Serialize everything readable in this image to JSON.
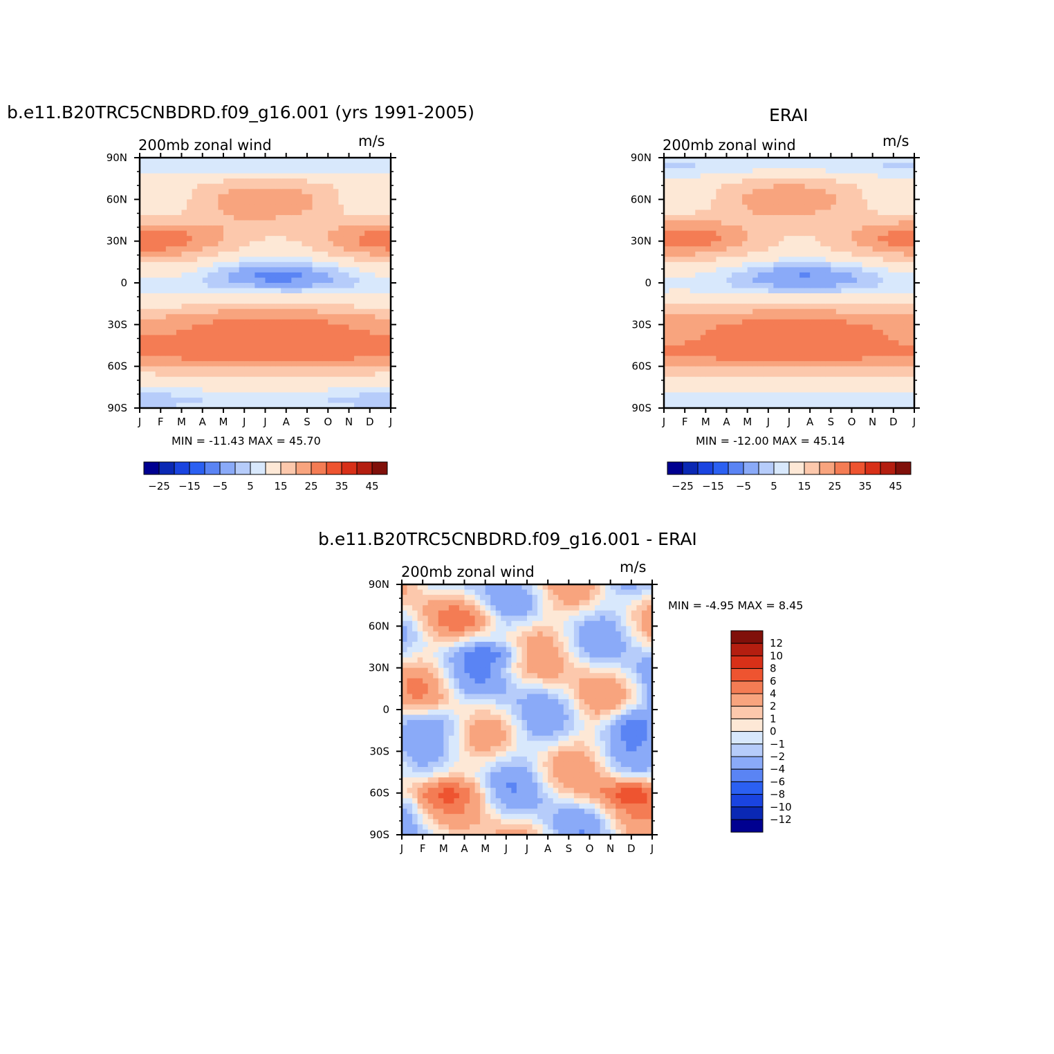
{
  "panels": [
    {
      "title": "b.e11.B20TRC5CNBDRD.f09_g16.001 (yrs 1991-2005)",
      "left_label": "200mb zonal wind",
      "units": "m/s",
      "stats": "MIN = -11.43 MAX =  45.70",
      "colorbar": {
        "colors": [
          "#000090",
          "#0a28b4",
          "#1a44e0",
          "#2b60f2",
          "#5a84f4",
          "#8aaaf8",
          "#b6ccfa",
          "#d8e8fc",
          "#fde8d6",
          "#fcc8ac",
          "#f8a47e",
          "#f47c54",
          "#ee5430",
          "#d83018",
          "#b41e10",
          "#80100a"
        ],
        "labels": [
          "-25",
          "-15",
          "-5",
          "5",
          "15",
          "25",
          "35",
          "45"
        ]
      }
    },
    {
      "title": "ERAI",
      "left_label": "200mb zonal wind",
      "units": "m/s",
      "stats": "MIN = -12.00 MAX =  45.14",
      "colorbar": {
        "colors": [
          "#000090",
          "#0a28b4",
          "#1a44e0",
          "#2b60f2",
          "#5a84f4",
          "#8aaaf8",
          "#b6ccfa",
          "#d8e8fc",
          "#fde8d6",
          "#fcc8ac",
          "#f8a47e",
          "#f47c54",
          "#ee5430",
          "#d83018",
          "#b41e10",
          "#80100a"
        ],
        "labels": [
          "-25",
          "-15",
          "-5",
          "5",
          "15",
          "25",
          "35",
          "45"
        ]
      }
    },
    {
      "title": "b.e11.B20TRC5CNBDRD.f09_g16.001 - ERAI",
      "left_label": "200mb zonal wind",
      "units": "m/s",
      "stats": "MIN =   -4.95 MAX =     8.45",
      "colorbar": {
        "colors": [
          "#80100a",
          "#b41e10",
          "#d83018",
          "#ee5430",
          "#f47c54",
          "#f8a47e",
          "#fcc8ac",
          "#fde8d6",
          "#d8e8fc",
          "#b6ccfa",
          "#8aaaf8",
          "#5a84f4",
          "#2b60f2",
          "#1a44e0",
          "#0a28b4",
          "#000090"
        ],
        "labels": [
          "12",
          "10",
          "8",
          "6",
          "4",
          "2",
          "1",
          "0",
          "-1",
          "-2",
          "-4",
          "-6",
          "-8",
          "-10",
          "-12"
        ]
      }
    }
  ],
  "chart_data": {
    "type": "heatmap",
    "x_ticks": [
      "J",
      "F",
      "M",
      "A",
      "M",
      "J",
      "J",
      "A",
      "S",
      "O",
      "N",
      "D",
      "J"
    ],
    "y_ticks": [
      "90N",
      "60N",
      "30N",
      "0",
      "30S",
      "60S",
      "90S"
    ],
    "features": [
      {
        "panel": 0,
        "kind": "jet",
        "month": 0.8,
        "lat": 32,
        "peak": 45.7
      },
      {
        "panel": 0,
        "kind": "jet",
        "month": 11.7,
        "lat": 32,
        "peak": 40
      },
      {
        "panel": 0,
        "kind": "jet",
        "month": 6.3,
        "lat": -30,
        "peak": 45
      },
      {
        "panel": 0,
        "kind": "easterly",
        "month": 7.0,
        "lat": 7,
        "peak": -11.4
      },
      {
        "panel": 1,
        "kind": "jet",
        "month": 0.8,
        "lat": 32,
        "peak": 45.1
      },
      {
        "panel": 1,
        "kind": "jet",
        "month": 11.8,
        "lat": 32,
        "peak": 42
      },
      {
        "panel": 1,
        "kind": "jet",
        "month": 6.0,
        "lat": -30,
        "peak": 40
      },
      {
        "panel": 1,
        "kind": "easterly",
        "month": 7.0,
        "lat": 7,
        "peak": -12.0
      },
      {
        "panel": 2,
        "kind": "max",
        "month": 11.0,
        "lat": -60,
        "peak": 8.45
      },
      {
        "panel": 2,
        "kind": "min",
        "month": 11.0,
        "lat": -10,
        "peak": -4.95
      }
    ]
  }
}
